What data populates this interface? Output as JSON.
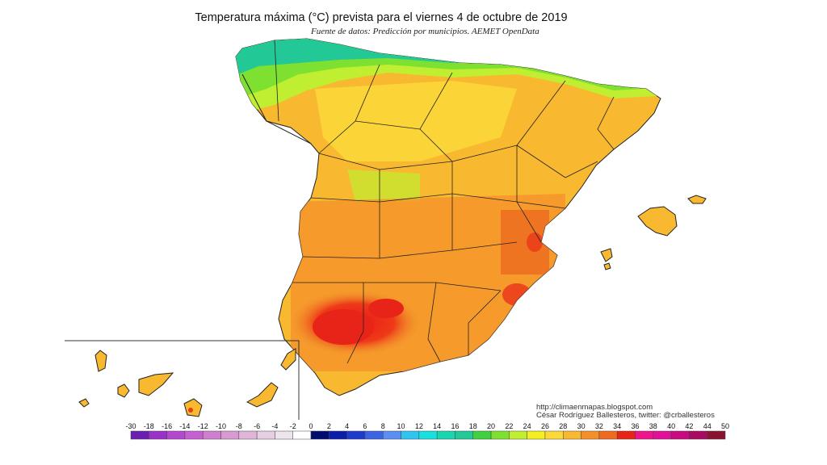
{
  "title": "Temperatura máxima (°C) prevista para el viernes 4 de octubre de 2019",
  "subtitle": "Fuente de datos: Predicción por municipios. AEMET OpenData",
  "credits": {
    "line1": "http://climaenmapas.blogspot.com",
    "line2": "César Rodríguez Ballesteros, twitter: @crballesteros"
  },
  "legend": {
    "labels": [
      "-30",
      "-18",
      "-16",
      "-14",
      "-12",
      "-10",
      "-8",
      "-6",
      "-4",
      "-2",
      "0",
      "2",
      "4",
      "6",
      "8",
      "10",
      "12",
      "14",
      "16",
      "18",
      "20",
      "22",
      "24",
      "26",
      "28",
      "30",
      "32",
      "34",
      "36",
      "38",
      "40",
      "42",
      "44",
      "50"
    ],
    "colors": [
      "#6a1fb0",
      "#9b32c8",
      "#b449d0",
      "#c660d2",
      "#cf7fcf",
      "#d79ad2",
      "#dfb6d9",
      "#e6cfe2",
      "#eee4ec",
      "#ffffff",
      "#000c6e",
      "#0a1ea8",
      "#1e3ccc",
      "#3a64e2",
      "#5a8ef0",
      "#30c4f0",
      "#18e0e0",
      "#1ad6b0",
      "#22c896",
      "#40d040",
      "#7ee030",
      "#c0ee30",
      "#f4f020",
      "#fcd838",
      "#f8b830",
      "#f4902a",
      "#ee6a20",
      "#e82418",
      "#f0148c",
      "#e01098",
      "#c80c80",
      "#a80a62",
      "#8a1430"
    ]
  }
}
